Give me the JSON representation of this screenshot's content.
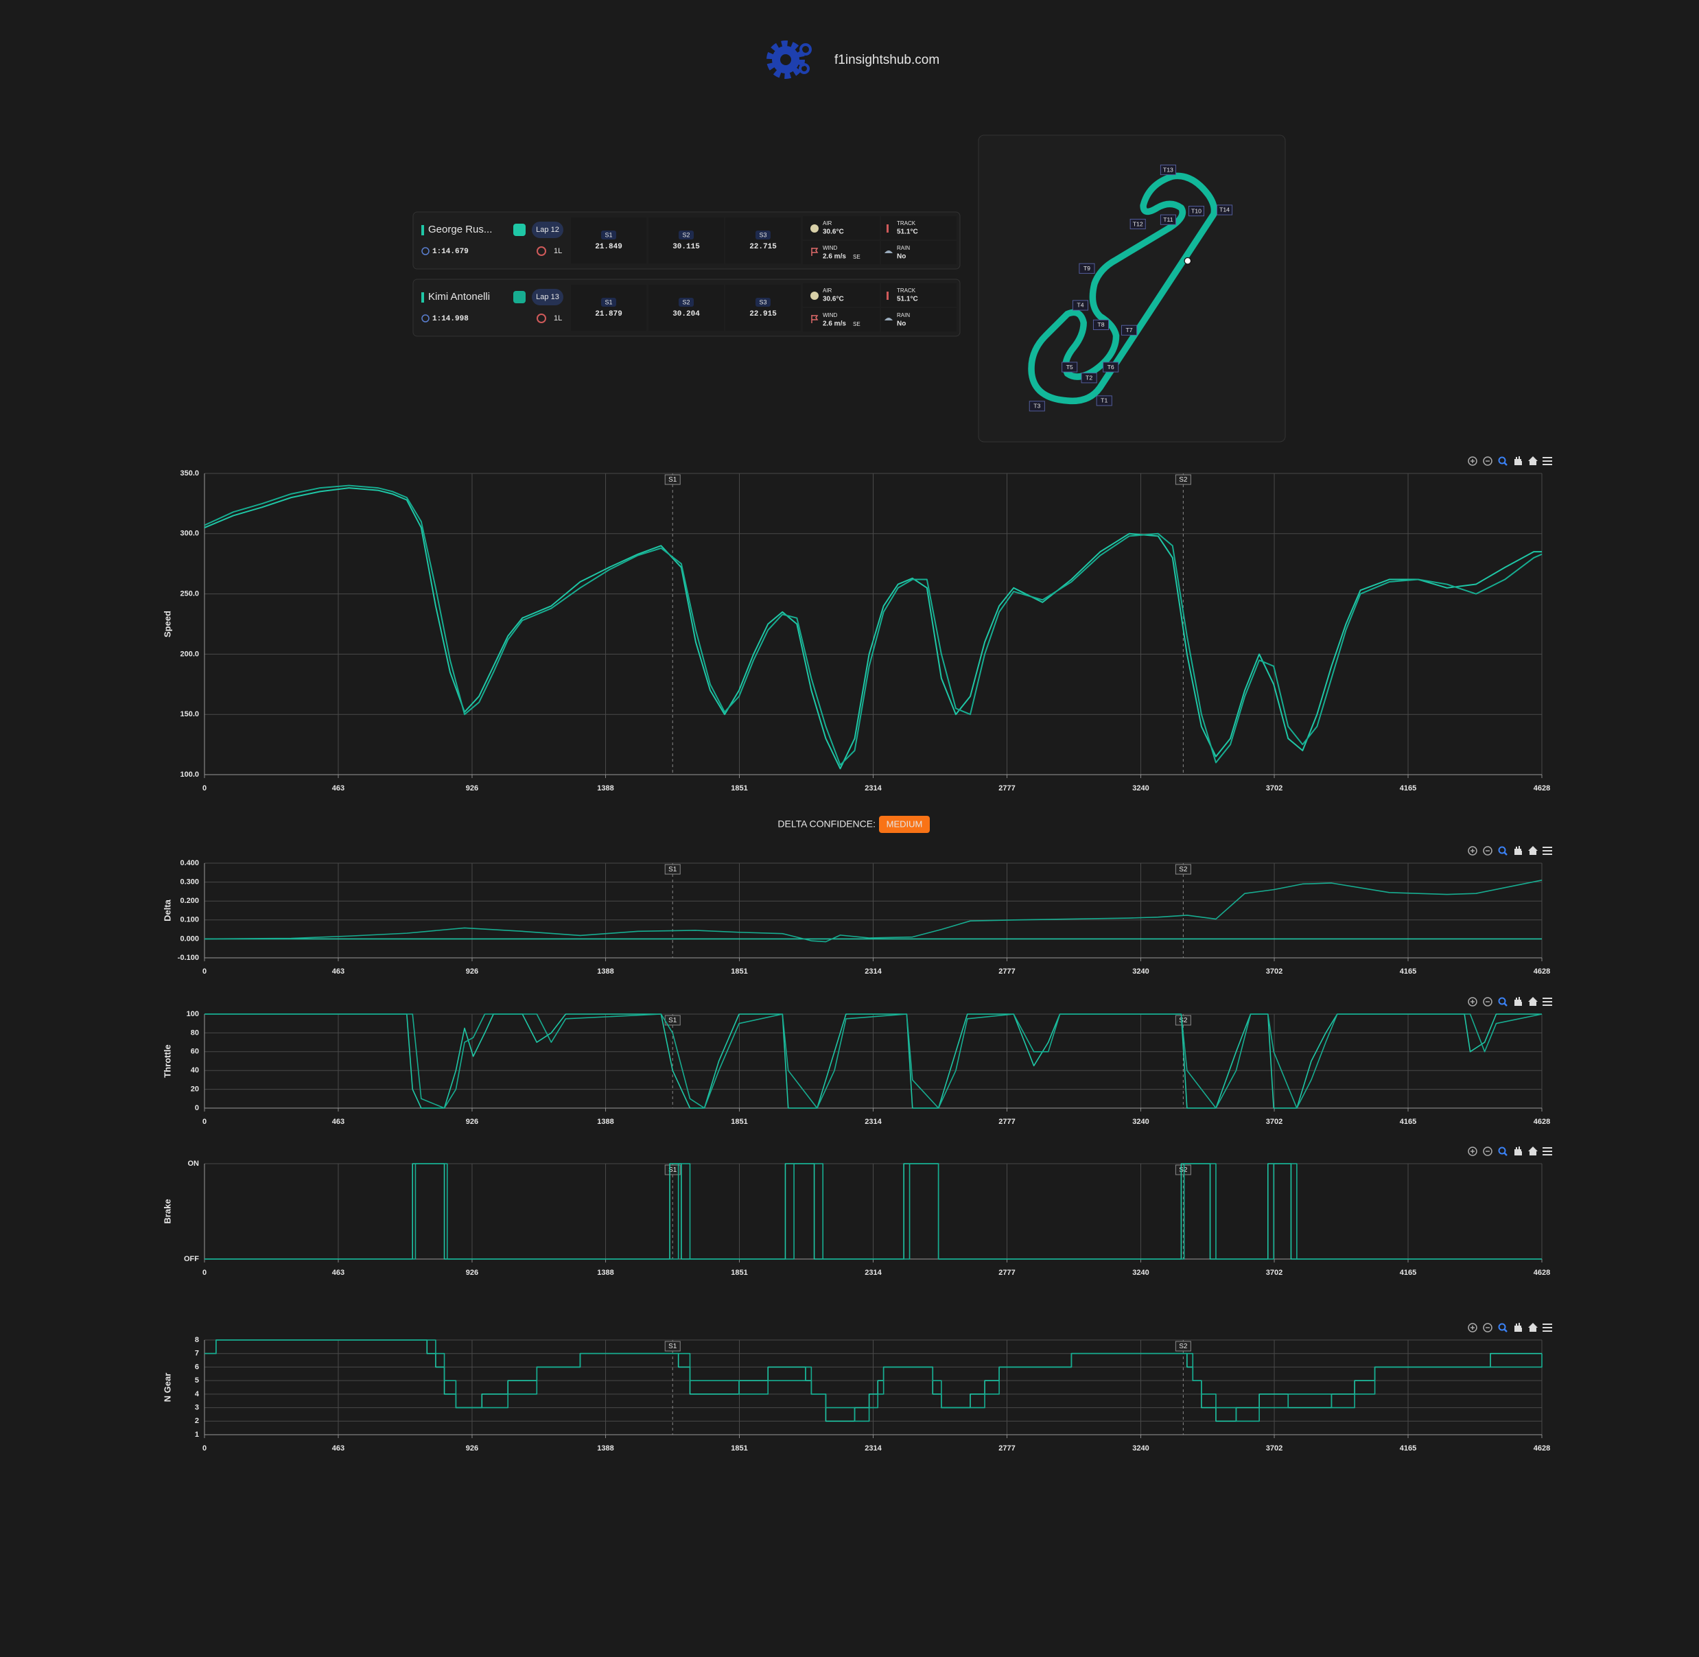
{
  "header": {
    "site": "f1insightshub.com"
  },
  "drivers": [
    {
      "name": "George Rus...",
      "lap": "Lap 12",
      "lap_time": "1:14.679",
      "tyre": "1L",
      "sectors": [
        {
          "label": "S1",
          "time": "21.849"
        },
        {
          "label": "S2",
          "time": "30.115"
        },
        {
          "label": "S3",
          "time": "22.715"
        }
      ],
      "weather": {
        "air_label": "AIR",
        "air": "30.6°C",
        "track_label": "TRACK",
        "track": "51.1°C",
        "wind_label": "WIND",
        "wind": "2.6 m/s",
        "wind_dir": "SE",
        "rain_label": "RAIN",
        "rain": "No"
      }
    },
    {
      "name": "Kimi Antonelli",
      "lap": "Lap 13",
      "lap_time": "1:14.998",
      "tyre": "1L",
      "sectors": [
        {
          "label": "S1",
          "time": "21.879"
        },
        {
          "label": "S2",
          "time": "30.204"
        },
        {
          "label": "S3",
          "time": "22.915"
        }
      ],
      "weather": {
        "air_label": "AIR",
        "air": "30.6°C",
        "track_label": "TRACK",
        "track": "51.1°C",
        "wind_label": "WIND",
        "wind": "2.6 m/s",
        "wind_dir": "SE",
        "rain_label": "RAIN",
        "rain": "No"
      }
    }
  ],
  "track_map": {
    "turns": [
      "T1",
      "T2",
      "T3",
      "T4",
      "T5",
      "T6",
      "T7",
      "T8",
      "T9",
      "T10",
      "T11",
      "T12",
      "T13",
      "T14"
    ]
  },
  "delta_confidence": {
    "label": "DELTA CONFIDENCE:",
    "value": "MEDIUM"
  },
  "sector_markers": [
    {
      "label": "S1",
      "x": 1620
    },
    {
      "label": "S2",
      "x": 3387
    }
  ],
  "chart_data": [
    {
      "type": "line",
      "ylabel": "Speed",
      "x": [
        0,
        100,
        200,
        300,
        400,
        500,
        600,
        650,
        700,
        750,
        800,
        850,
        900,
        950,
        1000,
        1050,
        1100,
        1200,
        1300,
        1400,
        1500,
        1580,
        1650,
        1700,
        1750,
        1800,
        1850,
        1900,
        1950,
        2000,
        2050,
        2100,
        2150,
        2200,
        2250,
        2300,
        2350,
        2400,
        2450,
        2500,
        2550,
        2600,
        2650,
        2700,
        2750,
        2800,
        2900,
        3000,
        3100,
        3200,
        3300,
        3350,
        3400,
        3450,
        3500,
        3550,
        3600,
        3650,
        3700,
        3750,
        3800,
        3850,
        3900,
        3950,
        4000,
        4100,
        4200,
        4300,
        4400,
        4500,
        4600,
        4628
      ],
      "series": [
        {
          "color": "#1fc7a6",
          "values": [
            305,
            315,
            322,
            330,
            335,
            338,
            336,
            333,
            328,
            305,
            240,
            185,
            152,
            165,
            190,
            215,
            230,
            240,
            260,
            272,
            283,
            290,
            272,
            210,
            170,
            150,
            170,
            200,
            225,
            235,
            225,
            170,
            130,
            105,
            130,
            200,
            240,
            258,
            263,
            255,
            180,
            150,
            165,
            210,
            240,
            255,
            243,
            262,
            285,
            300,
            298,
            280,
            200,
            140,
            115,
            130,
            170,
            200,
            175,
            130,
            120,
            150,
            190,
            225,
            253,
            262,
            262,
            255,
            258,
            272,
            285,
            285
          ]
        },
        {
          "color": "#17ad91",
          "values": [
            307,
            318,
            325,
            333,
            338,
            340,
            338,
            335,
            330,
            310,
            255,
            195,
            150,
            160,
            185,
            212,
            228,
            238,
            255,
            270,
            282,
            288,
            275,
            220,
            175,
            152,
            165,
            195,
            220,
            233,
            230,
            180,
            140,
            108,
            120,
            190,
            235,
            255,
            262,
            262,
            200,
            155,
            150,
            200,
            235,
            252,
            245,
            260,
            282,
            298,
            300,
            290,
            215,
            150,
            110,
            125,
            165,
            195,
            190,
            140,
            125,
            140,
            180,
            220,
            250,
            260,
            262,
            258,
            250,
            262,
            280,
            283
          ]
        }
      ],
      "xlim": [
        0,
        4628
      ],
      "xticks": [
        0,
        463,
        926,
        1388,
        1851,
        2314,
        2777,
        3240,
        3702,
        4165,
        4628
      ],
      "ylim": [
        100,
        350
      ],
      "yticks": [
        {
          "value": 100,
          "label": "100.0"
        },
        {
          "value": 150,
          "label": "150.0"
        },
        {
          "value": 200,
          "label": "200.0"
        },
        {
          "value": 250,
          "label": "250.0"
        },
        {
          "value": 300,
          "label": "300.0"
        },
        {
          "value": 350,
          "label": "350.0"
        }
      ],
      "grid": true,
      "step": false
    },
    {
      "type": "line",
      "ylabel": "Delta",
      "x": [
        0,
        300,
        500,
        700,
        900,
        1100,
        1300,
        1500,
        1700,
        1850,
        2000,
        2100,
        2150,
        2200,
        2300,
        2450,
        2550,
        2650,
        2800,
        3000,
        3200,
        3300,
        3400,
        3500,
        3600,
        3700,
        3800,
        3900,
        4100,
        4300,
        4400,
        4628
      ],
      "series": [
        {
          "color": "#1fc7a6",
          "values": [
            0,
            0,
            0,
            0,
            0,
            0,
            0,
            0,
            0,
            0,
            0,
            0,
            0,
            0,
            0,
            0,
            0,
            0,
            0,
            0,
            0,
            0,
            0,
            0,
            0,
            0,
            0,
            0,
            0,
            0,
            0,
            0
          ]
        },
        {
          "color": "#17ad91",
          "values": [
            0,
            0.003,
            0.015,
            0.03,
            0.058,
            0.04,
            0.018,
            0.04,
            0.045,
            0.035,
            0.028,
            -0.01,
            -0.015,
            0.02,
            0.005,
            0.01,
            0.05,
            0.095,
            0.1,
            0.105,
            0.11,
            0.115,
            0.125,
            0.105,
            0.24,
            0.26,
            0.29,
            0.295,
            0.245,
            0.235,
            0.24,
            0.31
          ]
        }
      ],
      "xlim": [
        0,
        4628
      ],
      "xticks": [
        0,
        463,
        926,
        1388,
        1851,
        2314,
        2777,
        3240,
        3702,
        4165,
        4628
      ],
      "ylim": [
        -0.1,
        0.4
      ],
      "yticks": [
        {
          "value": -0.1,
          "label": "-0.100"
        },
        {
          "value": 0,
          "label": "0.000"
        },
        {
          "value": 0.1,
          "label": "0.100"
        },
        {
          "value": 0.2,
          "label": "0.200"
        },
        {
          "value": 0.3,
          "label": "0.300"
        },
        {
          "value": 0.4,
          "label": "0.400"
        }
      ],
      "grid": true,
      "step": false
    },
    {
      "type": "line",
      "ylabel": "Throttle",
      "x": [
        0,
        700,
        720,
        750,
        830,
        870,
        900,
        930,
        970,
        1000,
        1100,
        1150,
        1200,
        1250,
        1580,
        1620,
        1680,
        1730,
        1780,
        1850,
        2000,
        2020,
        2120,
        2180,
        2220,
        2430,
        2450,
        2540,
        2600,
        2640,
        2800,
        2870,
        2920,
        2960,
        3380,
        3400,
        3500,
        3570,
        3620,
        3680,
        3700,
        3780,
        3830,
        3880,
        3920,
        4360,
        4380,
        4430,
        4470,
        4628
      ],
      "series": [
        {
          "color": "#1fc7a6",
          "values": [
            100,
            100,
            20,
            0,
            0,
            40,
            85,
            55,
            80,
            100,
            100,
            70,
            80,
            100,
            100,
            40,
            0,
            0,
            50,
            100,
            100,
            0,
            0,
            60,
            100,
            100,
            0,
            0,
            60,
            100,
            100,
            45,
            70,
            100,
            100,
            0,
            0,
            60,
            100,
            100,
            0,
            0,
            50,
            80,
            100,
            100,
            60,
            70,
            100,
            100
          ]
        },
        {
          "color": "#17ad91",
          "values": [
            100,
            100,
            100,
            10,
            0,
            20,
            70,
            75,
            100,
            100,
            100,
            100,
            70,
            95,
            100,
            80,
            10,
            0,
            40,
            90,
            100,
            40,
            0,
            40,
            95,
            100,
            30,
            0,
            40,
            95,
            100,
            60,
            60,
            100,
            100,
            40,
            0,
            40,
            100,
            100,
            60,
            0,
            30,
            70,
            100,
            100,
            100,
            60,
            90,
            100
          ]
        }
      ],
      "xlim": [
        0,
        4628
      ],
      "xticks": [
        0,
        463,
        926,
        1388,
        1851,
        2314,
        2777,
        3240,
        3702,
        4165,
        4628
      ],
      "ylim": [
        0,
        100
      ],
      "yticks": [
        0,
        20,
        40,
        60,
        80,
        100
      ],
      "grid": true,
      "step": false
    },
    {
      "type": "line",
      "ylabel": "Brake",
      "x": [
        0,
        720,
        730,
        830,
        840,
        1610,
        1640,
        1650,
        1680,
        2010,
        2040,
        2110,
        2140,
        2420,
        2440,
        2540,
        3380,
        3390,
        3480,
        3500,
        3680,
        3700,
        3760,
        3780,
        4628
      ],
      "series": [
        {
          "color": "#1fc7a6",
          "values": [
            0,
            1,
            1,
            0,
            0,
            1,
            1,
            0,
            0,
            1,
            1,
            0,
            0,
            1,
            1,
            0,
            1,
            1,
            0,
            0,
            1,
            1,
            0,
            0,
            0
          ]
        },
        {
          "color": "#17ad91",
          "values": [
            0,
            0,
            1,
            1,
            0,
            0,
            1,
            1,
            0,
            0,
            1,
            1,
            0,
            0,
            1,
            0,
            0,
            1,
            1,
            0,
            0,
            1,
            1,
            0,
            0
          ]
        }
      ],
      "xlim": [
        0,
        4628
      ],
      "xticks": [
        0,
        463,
        926,
        1388,
        1851,
        2314,
        2777,
        3240,
        3702,
        4165,
        4628
      ],
      "ylim": [
        0,
        1
      ],
      "yticks": [
        {
          "value": 0,
          "label": "OFF"
        },
        {
          "value": 1,
          "label": "ON"
        }
      ],
      "grid": true,
      "step": true
    },
    {
      "type": "line",
      "ylabel": "N Gear",
      "x": [
        0,
        40,
        770,
        800,
        830,
        870,
        960,
        1050,
        1150,
        1300,
        1640,
        1680,
        1850,
        1950,
        2080,
        2100,
        2150,
        2250,
        2300,
        2330,
        2350,
        2520,
        2550,
        2650,
        2700,
        2750,
        3000,
        3400,
        3420,
        3450,
        3500,
        3570,
        3650,
        3750,
        3900,
        3980,
        4050,
        4450,
        4628
      ],
      "series": [
        {
          "color": "#1fc7a6",
          "values": [
            7,
            8,
            7,
            6,
            4,
            3,
            4,
            5,
            6,
            7,
            6,
            4,
            5,
            6,
            5,
            4,
            2,
            3,
            4,
            5,
            6,
            4,
            3,
            4,
            5,
            6,
            7,
            6,
            5,
            3,
            2,
            3,
            4,
            3,
            4,
            5,
            6,
            7,
            7
          ]
        },
        {
          "color": "#17ad91",
          "values": [
            7,
            8,
            8,
            7,
            5,
            3,
            3,
            4,
            6,
            7,
            7,
            5,
            4,
            5,
            6,
            4,
            3,
            2,
            3,
            4,
            6,
            5,
            3,
            3,
            4,
            6,
            7,
            7,
            5,
            4,
            3,
            2,
            3,
            4,
            3,
            4,
            6,
            6,
            7
          ]
        }
      ],
      "xlim": [
        0,
        4628
      ],
      "xticks": [
        0,
        463,
        926,
        1388,
        1851,
        2314,
        2777,
        3240,
        3702,
        4165,
        4628
      ],
      "ylim": [
        1,
        8
      ],
      "yticks": [
        1,
        2,
        3,
        4,
        5,
        6,
        7,
        8
      ],
      "grid": true,
      "step": true
    }
  ]
}
